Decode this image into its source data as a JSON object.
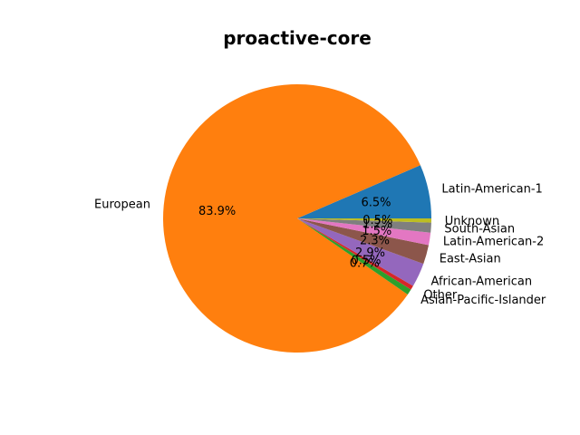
{
  "chart_data": {
    "type": "pie",
    "title": "proactive-core",
    "slices": [
      {
        "label": "Latin-American-1",
        "pct": "6.5%",
        "value": 6.5,
        "color": "#1f77b4"
      },
      {
        "label": "European",
        "pct": "83.9%",
        "value": 83.9,
        "color": "#ff7f0e"
      },
      {
        "label": "Asian-Pacific-Islander",
        "pct": "0.7%",
        "value": 0.7,
        "color": "#2ca02c"
      },
      {
        "label": "Other",
        "pct": "0.5%",
        "value": 0.5,
        "color": "#d62728"
      },
      {
        "label": "African-American",
        "pct": "2.9%",
        "value": 2.9,
        "color": "#9467bd"
      },
      {
        "label": "East-Asian",
        "pct": "2.3%",
        "value": 2.3,
        "color": "#8c564b"
      },
      {
        "label": "Latin-American-2",
        "pct": "1.5%",
        "value": 1.5,
        "color": "#e377c2"
      },
      {
        "label": "South-Asian",
        "pct": "1.2%",
        "value": 1.2,
        "color": "#7f7f7f"
      },
      {
        "label": "Unknown",
        "pct": "0.5%",
        "value": 0.5,
        "color": "#bcbd22"
      }
    ],
    "start_angle_deg": 0,
    "direction": "counterclockwise",
    "legend": "none"
  }
}
